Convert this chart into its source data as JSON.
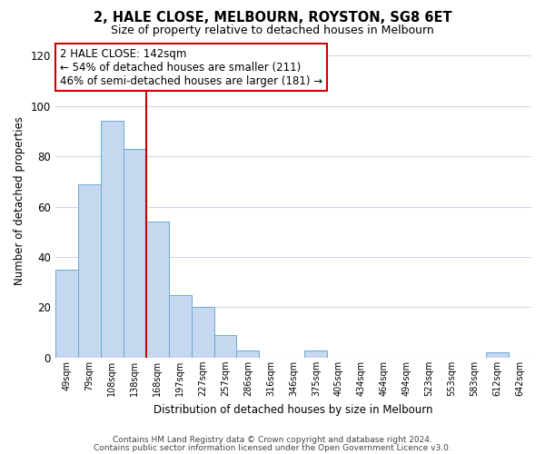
{
  "title": "2, HALE CLOSE, MELBOURN, ROYSTON, SG8 6ET",
  "subtitle": "Size of property relative to detached houses in Melbourn",
  "xlabel": "Distribution of detached houses by size in Melbourn",
  "ylabel": "Number of detached properties",
  "bar_labels": [
    "49sqm",
    "79sqm",
    "108sqm",
    "138sqm",
    "168sqm",
    "197sqm",
    "227sqm",
    "257sqm",
    "286sqm",
    "316sqm",
    "346sqm",
    "375sqm",
    "405sqm",
    "434sqm",
    "464sqm",
    "494sqm",
    "523sqm",
    "553sqm",
    "583sqm",
    "612sqm",
    "642sqm"
  ],
  "bar_values": [
    35,
    69,
    94,
    83,
    54,
    25,
    20,
    9,
    3,
    0,
    0,
    3,
    0,
    0,
    0,
    0,
    0,
    0,
    0,
    2,
    0
  ],
  "bar_color": "#c5d8ef",
  "bar_edge_color": "#6aaad4",
  "highlight_line_index": 3,
  "highlight_line_color": "#cc0000",
  "ylim": [
    0,
    125
  ],
  "yticks": [
    0,
    20,
    40,
    60,
    80,
    100,
    120
  ],
  "annotation_title": "2 HALE CLOSE: 142sqm",
  "annotation_line1": "← 54% of detached houses are smaller (211)",
  "annotation_line2": "46% of semi-detached houses are larger (181) →",
  "annotation_box_color": "#ffffff",
  "annotation_box_edge_color": "#cc0000",
  "footnote1": "Contains HM Land Registry data © Crown copyright and database right 2024.",
  "footnote2": "Contains public sector information licensed under the Open Government Licence v3.0.",
  "background_color": "#ffffff",
  "grid_color": "#d0d8e8"
}
